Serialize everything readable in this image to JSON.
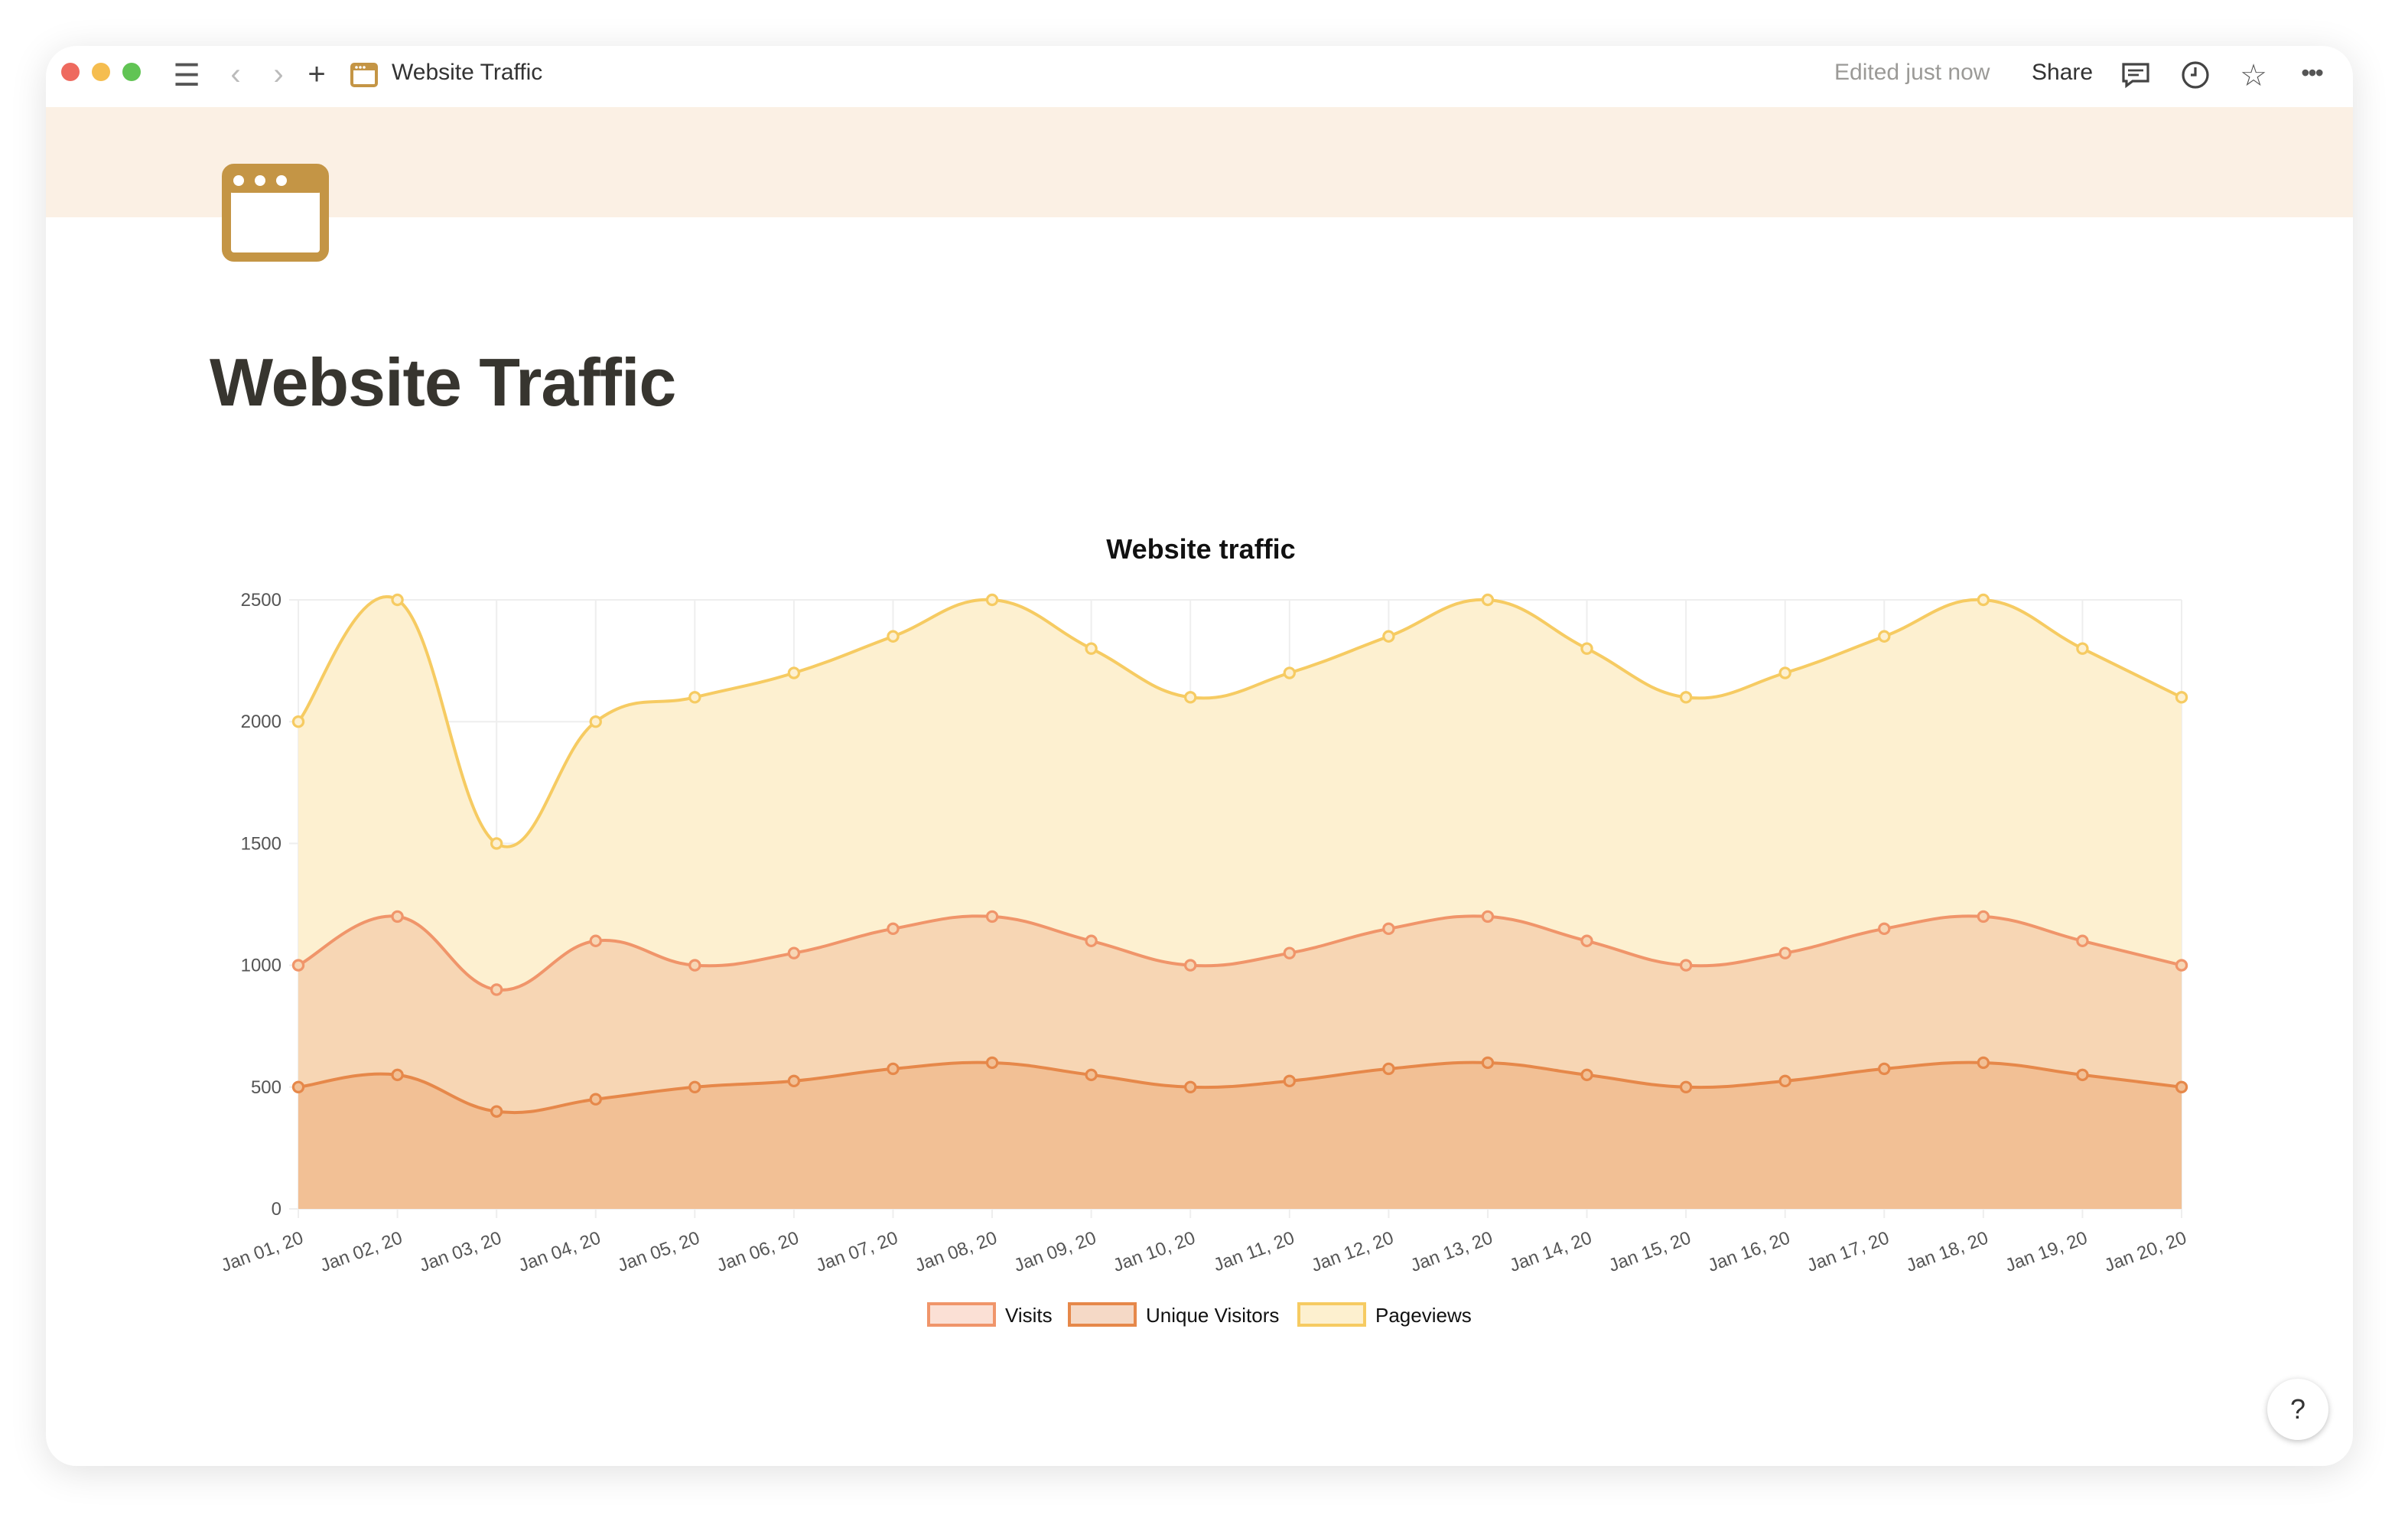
{
  "window": {
    "breadcrumb_title": "Website Traffic",
    "edited_status": "Edited just now",
    "share_label": "Share",
    "icons": [
      "menu-icon",
      "back-icon",
      "forward-icon",
      "plus-icon",
      "browser-window-icon",
      "comment-icon",
      "clock-icon",
      "star-icon",
      "more-icon"
    ]
  },
  "page": {
    "title": "Website Traffic",
    "banner_color": "#fbf0e4",
    "icon": "browser-window-icon",
    "help_label": "?"
  },
  "chart_data": {
    "type": "area",
    "title": "Website traffic",
    "xlabel": "",
    "ylabel": "",
    "ylim": [
      0,
      2500
    ],
    "yticks": [
      "0",
      "500",
      "1000",
      "1500",
      "2000",
      "2500"
    ],
    "grid": true,
    "legend_position": "bottom",
    "categories": [
      "Jan 01, 20",
      "Jan 02, 20",
      "Jan 03, 20",
      "Jan 04, 20",
      "Jan 05, 20",
      "Jan 06, 20",
      "Jan 07, 20",
      "Jan 08, 20",
      "Jan 09, 20",
      "Jan 10, 20",
      "Jan 11, 20",
      "Jan 12, 20",
      "Jan 13, 20",
      "Jan 14, 20",
      "Jan 15, 20",
      "Jan 16, 20",
      "Jan 17, 20",
      "Jan 18, 20",
      "Jan 19, 20",
      "Jan 20, 20"
    ],
    "series": [
      {
        "name": "Visits",
        "line_color": "#f0956a",
        "fill_color": "#f7d6b4",
        "legend_fill": "#fbe0d5",
        "values": [
          1000,
          1200,
          900,
          1100,
          1000,
          1050,
          1150,
          1200,
          1100,
          1000,
          1050,
          1150,
          1200,
          1100,
          1000,
          1050,
          1150,
          1200,
          1100,
          1000
        ]
      },
      {
        "name": "Unique Visitors",
        "line_color": "#e6884a",
        "fill_color": "#f2c095",
        "legend_fill": "#f5d9c6",
        "values": [
          500,
          550,
          400,
          450,
          500,
          525,
          575,
          600,
          550,
          500,
          525,
          575,
          600,
          550,
          500,
          525,
          575,
          600,
          550,
          500
        ]
      },
      {
        "name": "Pageviews",
        "line_color": "#f6cb62",
        "fill_color": "#fdf0d0",
        "legend_fill": "#fdf0cf",
        "values": [
          2000,
          2500,
          1500,
          2000,
          2100,
          2200,
          2350,
          2500,
          2300,
          2100,
          2200,
          2350,
          2500,
          2300,
          2100,
          2200,
          2350,
          2500,
          2300,
          2100
        ]
      }
    ]
  }
}
